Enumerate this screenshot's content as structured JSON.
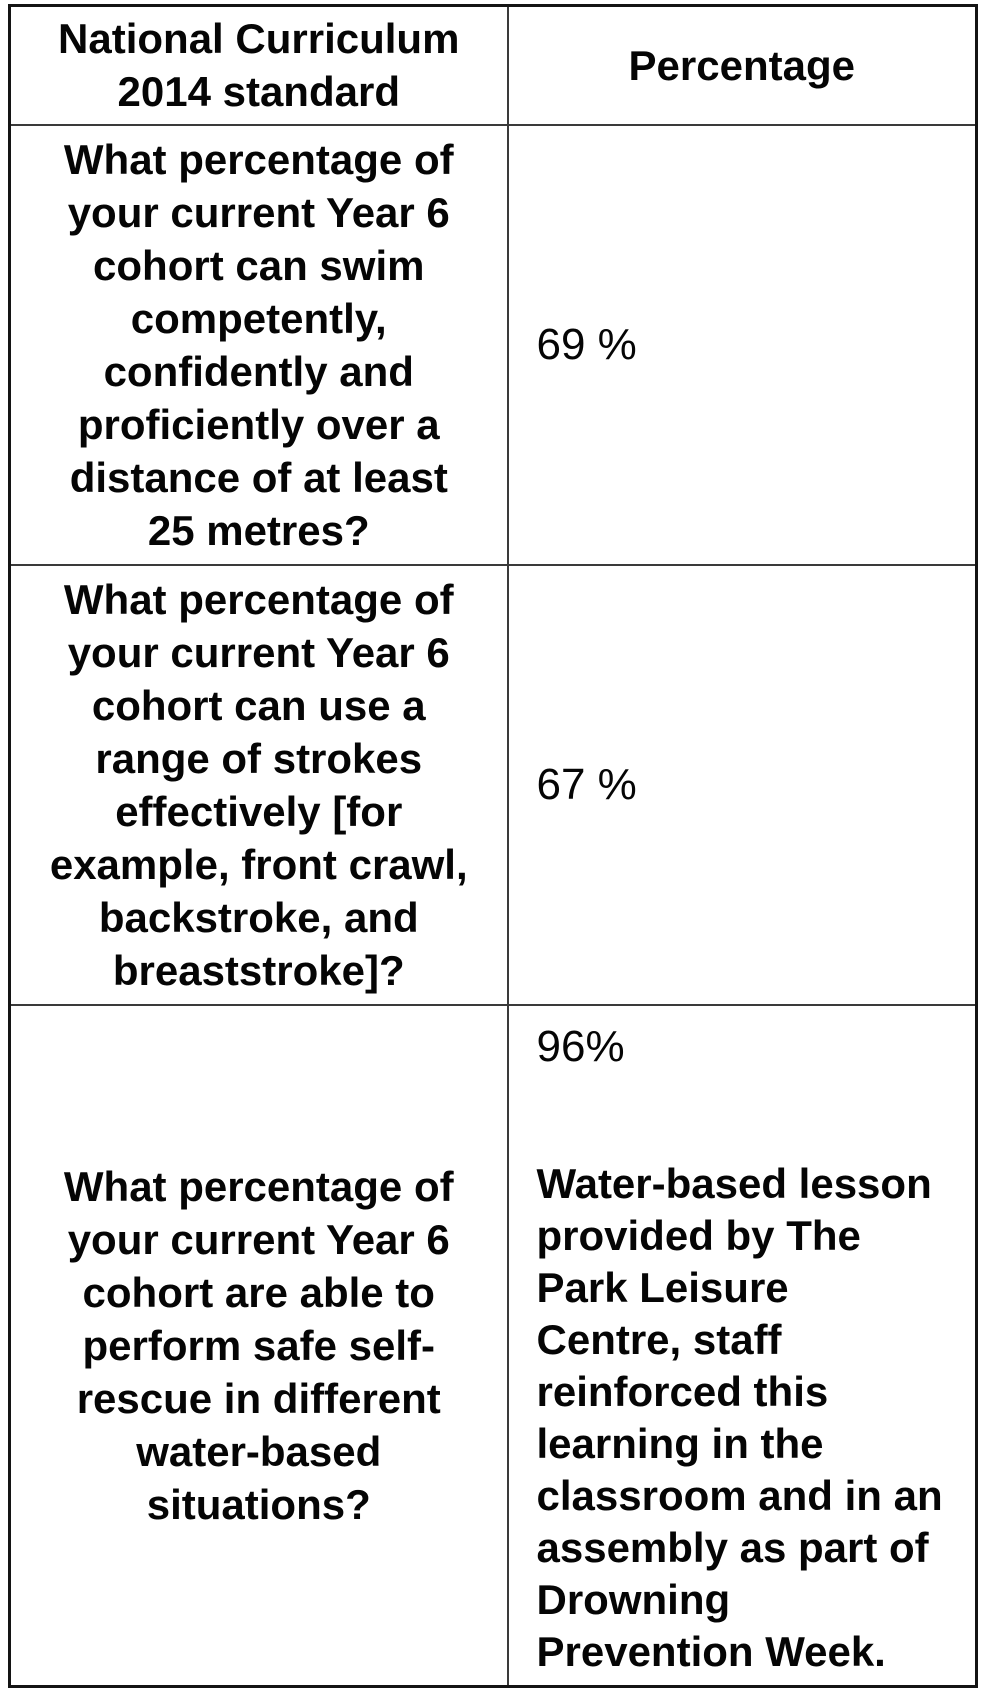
{
  "table": {
    "headers": {
      "standard": "National Curriculum\n2014 standard",
      "percentage": "Percentage"
    },
    "rows": [
      {
        "standard": "What percentage of\nyour current Year 6\ncohort can swim\ncompetently,\nconfidently and\nproficiently over a\ndistance of at least\n25 metres?",
        "percentage": "69 %"
      },
      {
        "standard": "What percentage of\nyour current Year 6\ncohort can use a\nrange of strokes\neffectively [for\nexample, front crawl,\nbackstroke, and\nbreaststroke]?",
        "percentage": "67 %"
      },
      {
        "standard": "What percentage of\nyour current Year 6\ncohort are able to\nperform safe self-\nrescue in different\nwater-based\nsituations?",
        "percentage": "96%",
        "note": "Water-based lesson\nprovided by The\nPark Leisure\nCentre, staff\nreinforced this\nlearning in the\nclassroom and in an\nassembly as part of\nDrowning\nPrevention Week."
      }
    ]
  }
}
